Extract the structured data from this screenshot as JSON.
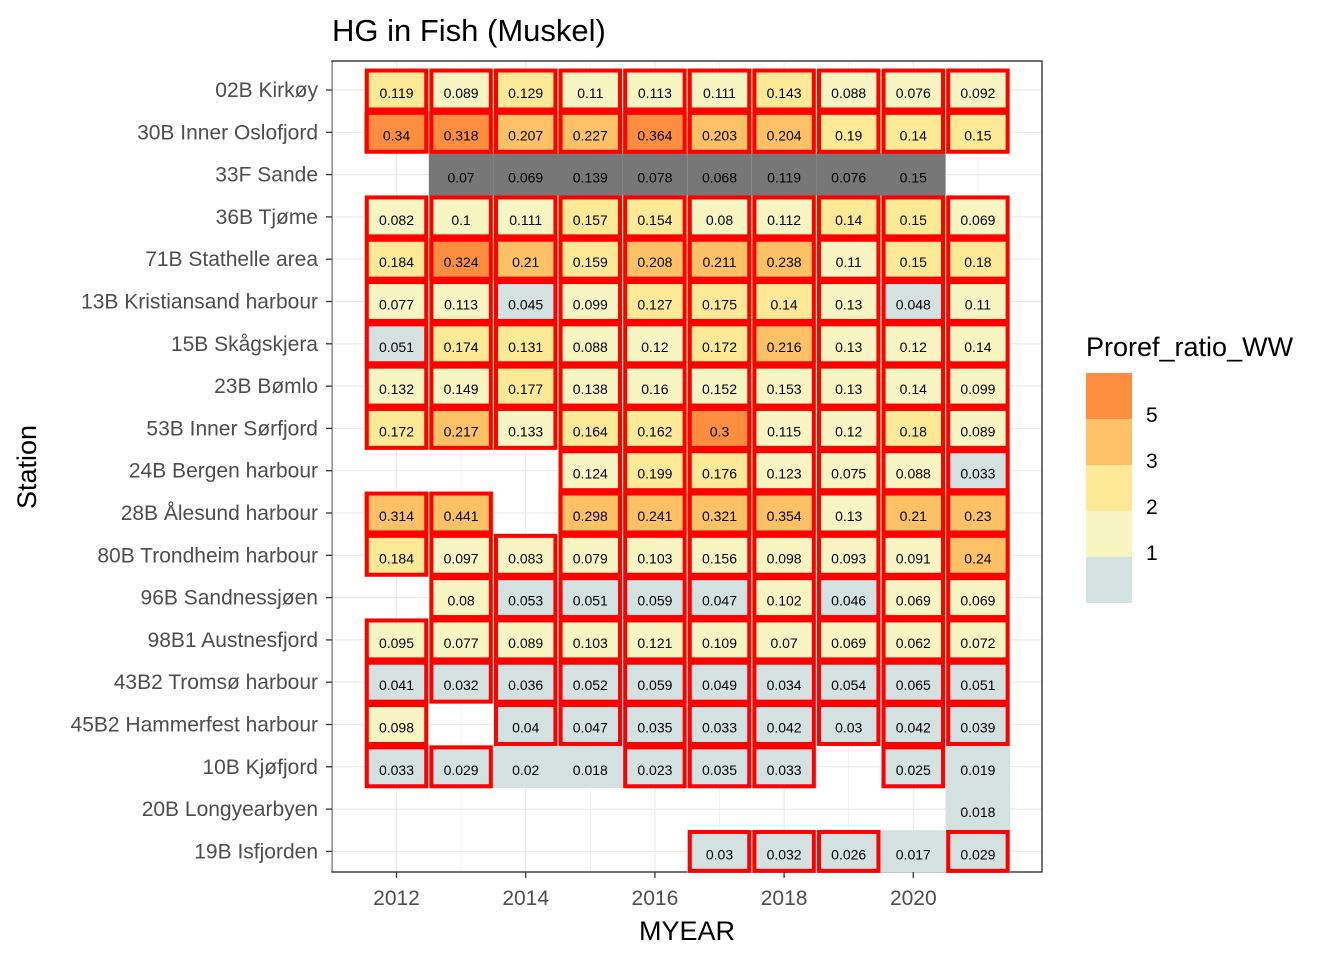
{
  "chart_data": {
    "type": "heatmap",
    "title": "HG in Fish (Muskel)",
    "xlabel": "MYEAR",
    "ylabel": "Station",
    "x_ticks": [
      2012,
      2014,
      2016,
      2018,
      2020
    ],
    "years": [
      2012,
      2013,
      2014,
      2015,
      2016,
      2017,
      2018,
      2019,
      2020,
      2021
    ],
    "stations": [
      "02B Kirkøy",
      "30B Inner Oslofjord",
      "33F Sande",
      "36B Tjøme",
      "71B Stathelle area",
      "13B Kristiansand harbour",
      "15B Skågskjera",
      "23B Bømlo",
      "53B Inner Sørfjord",
      "24B Bergen harbour",
      "28B Ålesund harbour",
      "80B Trondheim harbour",
      "96B Sandnessjøen",
      "98B1 Austnesfjord",
      "43B2 Tromsø harbour",
      "45B2 Hammerfest harbour",
      "10B Kjøfjord",
      "20B Longyearbyen",
      "19B Isfjorden"
    ],
    "cells": [
      [
        "0.119",
        "0.089",
        "0.129",
        "0.11",
        "0.113",
        "0.111",
        "0.143",
        "0.088",
        "0.076",
        "0.092"
      ],
      [
        "0.34",
        "0.318",
        "0.207",
        "0.227",
        "0.364",
        "0.203",
        "0.204",
        "0.19",
        "0.14",
        "0.15"
      ],
      [
        null,
        "0.07",
        "0.069",
        "0.139",
        "0.078",
        "0.068",
        "0.119",
        "0.076",
        "0.15",
        null
      ],
      [
        "0.082",
        "0.1",
        "0.111",
        "0.157",
        "0.154",
        "0.08",
        "0.112",
        "0.14",
        "0.15",
        "0.069"
      ],
      [
        "0.184",
        "0.324",
        "0.21",
        "0.159",
        "0.208",
        "0.211",
        "0.238",
        "0.11",
        "0.15",
        "0.18"
      ],
      [
        "0.077",
        "0.113",
        "0.045",
        "0.099",
        "0.127",
        "0.175",
        "0.14",
        "0.13",
        "0.048",
        "0.11"
      ],
      [
        "0.051",
        "0.174",
        "0.131",
        "0.088",
        "0.12",
        "0.172",
        "0.216",
        "0.13",
        "0.12",
        "0.14"
      ],
      [
        "0.132",
        "0.149",
        "0.177",
        "0.138",
        "0.16",
        "0.152",
        "0.153",
        "0.13",
        "0.14",
        "0.099"
      ],
      [
        "0.172",
        "0.217",
        "0.133",
        "0.164",
        "0.162",
        "0.3",
        "0.115",
        "0.12",
        "0.18",
        "0.089"
      ],
      [
        null,
        null,
        null,
        "0.124",
        "0.199",
        "0.176",
        "0.123",
        "0.075",
        "0.088",
        "0.033"
      ],
      [
        "0.314",
        "0.441",
        null,
        "0.298",
        "0.241",
        "0.321",
        "0.354",
        "0.13",
        "0.21",
        "0.23"
      ],
      [
        "0.184",
        "0.097",
        "0.083",
        "0.079",
        "0.103",
        "0.156",
        "0.098",
        "0.093",
        "0.091",
        "0.24"
      ],
      [
        null,
        "0.08",
        "0.053",
        "0.051",
        "0.059",
        "0.047",
        "0.102",
        "0.046",
        "0.069",
        "0.069"
      ],
      [
        "0.095",
        "0.077",
        "0.089",
        "0.103",
        "0.121",
        "0.109",
        "0.07",
        "0.069",
        "0.062",
        "0.072"
      ],
      [
        "0.041",
        "0.032",
        "0.036",
        "0.052",
        "0.059",
        "0.049",
        "0.034",
        "0.054",
        "0.065",
        "0.051"
      ],
      [
        "0.098",
        null,
        "0.04",
        "0.047",
        "0.035",
        "0.033",
        "0.042",
        "0.03",
        "0.042",
        "0.039"
      ],
      [
        "0.033",
        "0.029",
        "0.02",
        "0.018",
        "0.023",
        "0.035",
        "0.033",
        null,
        "0.025",
        "0.019"
      ],
      [
        null,
        null,
        null,
        null,
        null,
        null,
        null,
        null,
        null,
        "0.018"
      ],
      [
        null,
        null,
        null,
        null,
        null,
        "0.03",
        "0.032",
        "0.026",
        "0.017",
        "0.029"
      ]
    ],
    "fill_class": [
      [
        3,
        2,
        3,
        2,
        2,
        2,
        3,
        2,
        2,
        2
      ],
      [
        5,
        5,
        4,
        4,
        5,
        4,
        4,
        3,
        3,
        3
      ],
      [
        0,
        6,
        6,
        6,
        6,
        6,
        6,
        6,
        6,
        0
      ],
      [
        2,
        2,
        2,
        3,
        3,
        2,
        2,
        3,
        3,
        2
      ],
      [
        3,
        5,
        4,
        3,
        4,
        4,
        4,
        2,
        3,
        3
      ],
      [
        2,
        2,
        1,
        2,
        3,
        3,
        3,
        2,
        1,
        2
      ],
      [
        1,
        3,
        3,
        2,
        2,
        3,
        4,
        2,
        2,
        2
      ],
      [
        2,
        2,
        3,
        2,
        2,
        2,
        2,
        2,
        2,
        2
      ],
      [
        3,
        4,
        2,
        3,
        3,
        5,
        2,
        2,
        3,
        2
      ],
      [
        0,
        0,
        0,
        2,
        3,
        3,
        2,
        2,
        2,
        1
      ],
      [
        4,
        4,
        0,
        4,
        4,
        4,
        4,
        2,
        4,
        4
      ],
      [
        3,
        2,
        2,
        2,
        2,
        2,
        2,
        2,
        2,
        4
      ],
      [
        0,
        2,
        1,
        1,
        1,
        1,
        2,
        1,
        2,
        2
      ],
      [
        2,
        2,
        2,
        2,
        2,
        2,
        2,
        2,
        2,
        2
      ],
      [
        1,
        1,
        1,
        1,
        1,
        1,
        1,
        1,
        1,
        1
      ],
      [
        2,
        0,
        1,
        1,
        1,
        1,
        1,
        1,
        1,
        1
      ],
      [
        1,
        1,
        1,
        1,
        1,
        1,
        1,
        0,
        1,
        1
      ],
      [
        0,
        0,
        0,
        0,
        0,
        0,
        0,
        0,
        0,
        1
      ],
      [
        0,
        0,
        0,
        0,
        0,
        1,
        1,
        1,
        1,
        1
      ]
    ],
    "highlighted": [
      [
        1,
        1,
        1,
        1,
        1,
        1,
        1,
        1,
        1,
        1
      ],
      [
        1,
        1,
        1,
        1,
        1,
        1,
        1,
        1,
        1,
        1
      ],
      [
        0,
        0,
        0,
        0,
        0,
        0,
        0,
        0,
        0,
        0
      ],
      [
        1,
        1,
        1,
        1,
        1,
        1,
        1,
        1,
        1,
        1
      ],
      [
        1,
        1,
        1,
        1,
        1,
        1,
        1,
        1,
        1,
        1
      ],
      [
        1,
        1,
        1,
        1,
        1,
        1,
        1,
        1,
        1,
        1
      ],
      [
        1,
        1,
        1,
        1,
        1,
        1,
        1,
        1,
        1,
        1
      ],
      [
        1,
        1,
        1,
        1,
        1,
        1,
        1,
        1,
        1,
        1
      ],
      [
        1,
        1,
        1,
        1,
        1,
        1,
        1,
        1,
        1,
        1
      ],
      [
        0,
        0,
        0,
        1,
        1,
        1,
        1,
        1,
        1,
        1
      ],
      [
        1,
        1,
        0,
        1,
        1,
        1,
        1,
        1,
        1,
        1
      ],
      [
        1,
        1,
        1,
        1,
        1,
        1,
        1,
        1,
        1,
        1
      ],
      [
        0,
        1,
        1,
        1,
        1,
        1,
        1,
        1,
        1,
        1
      ],
      [
        1,
        1,
        1,
        1,
        1,
        1,
        1,
        1,
        1,
        1
      ],
      [
        1,
        1,
        1,
        1,
        1,
        1,
        1,
        1,
        1,
        1
      ],
      [
        1,
        0,
        1,
        1,
        1,
        1,
        1,
        1,
        1,
        1
      ],
      [
        1,
        1,
        0,
        0,
        1,
        1,
        1,
        0,
        1,
        0
      ],
      [
        0,
        0,
        0,
        0,
        0,
        0,
        0,
        0,
        0,
        0
      ],
      [
        0,
        0,
        0,
        0,
        0,
        1,
        1,
        1,
        0,
        1
      ]
    ],
    "fill_colors": [
      "#d3e1e0",
      "#f7f5c2",
      "#feea96",
      "#fec165",
      "#fe8e3f",
      "#777777"
    ],
    "highlight_color": "#ff0000",
    "legend": {
      "title": "Proref_ratio_WW",
      "labels": [
        "5",
        "3",
        "2",
        "1"
      ],
      "colors": [
        "#fe8e3f",
        "#fec165",
        "#feea96",
        "#f7f5c2",
        "#d3e1e0"
      ],
      "placement": "right"
    },
    "grid": true
  }
}
